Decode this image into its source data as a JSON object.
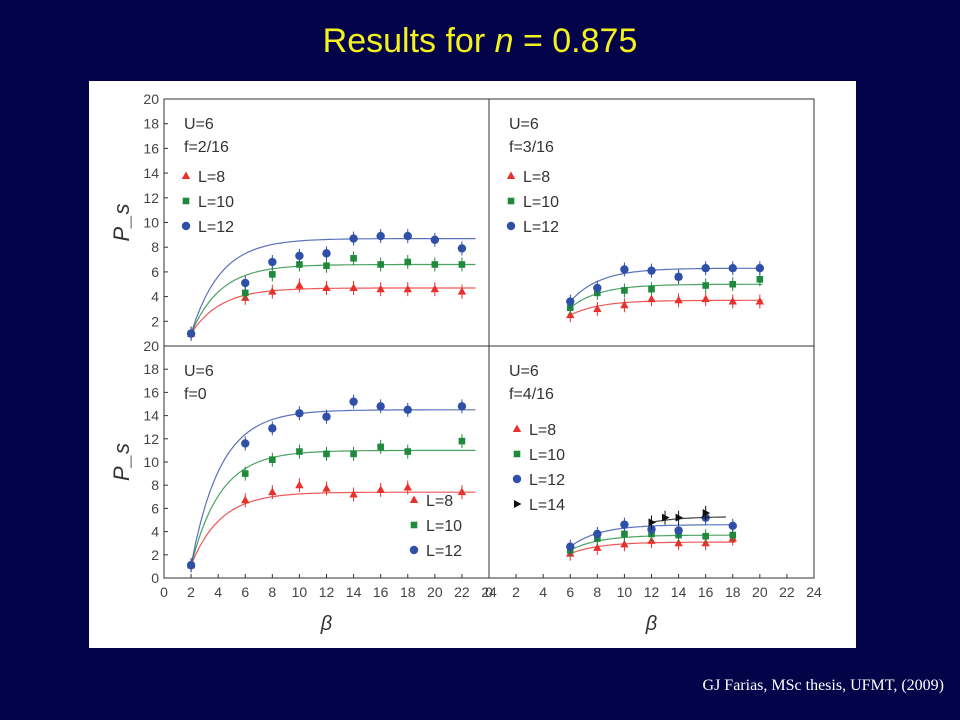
{
  "slide": {
    "title_prefix": "Results for ",
    "title_var": "n",
    "title_suffix": " = 0.875",
    "citation": "GJ Farias, MSc thesis, UFMT, (2009)"
  },
  "colors": {
    "background": "#03034a",
    "title": "#f4f21c",
    "L8": "#e8302c",
    "L10": "#1f8a3c",
    "L12": "#2f4fa8",
    "L14": "#111111"
  },
  "chart_data": [
    {
      "type": "scatter",
      "panel": "top-left",
      "ylabel": "P_s",
      "xlabel": "",
      "xlim": [
        0,
        24
      ],
      "ylim": [
        0,
        20
      ],
      "yticks": [
        "2",
        "4",
        "6",
        "8",
        "10",
        "12",
        "14",
        "16",
        "18",
        "20"
      ],
      "annotation": [
        "U=6",
        "f=2/16"
      ],
      "legend_placement": "top-left",
      "series": [
        {
          "name": "L=8",
          "marker": "triangle",
          "x": [
            2,
            6,
            8,
            10,
            12,
            14,
            16,
            18,
            20,
            22
          ],
          "y": [
            1.0,
            3.9,
            4.4,
            4.9,
            4.7,
            4.7,
            4.6,
            4.6,
            4.6,
            4.4
          ],
          "fit_plateau": 4.7
        },
        {
          "name": "L=10",
          "marker": "square",
          "x": [
            2,
            6,
            8,
            10,
            12,
            14,
            16,
            18,
            20,
            22
          ],
          "y": [
            1.0,
            4.3,
            5.8,
            6.6,
            6.5,
            7.1,
            6.6,
            6.8,
            6.6,
            6.6
          ],
          "fit_plateau": 6.6
        },
        {
          "name": "L=12",
          "marker": "circle",
          "x": [
            2,
            6,
            8,
            10,
            12,
            14,
            16,
            18,
            20,
            22
          ],
          "y": [
            1.0,
            5.1,
            6.8,
            7.3,
            7.5,
            8.7,
            8.9,
            8.9,
            8.6,
            7.9
          ],
          "fit_plateau": 8.7
        }
      ]
    },
    {
      "type": "scatter",
      "panel": "top-right",
      "ylabel": "",
      "xlabel": "",
      "xlim": [
        0,
        24
      ],
      "ylim": [
        0,
        20
      ],
      "annotation": [
        "U=6",
        "f=3/16"
      ],
      "legend_placement": "top-left",
      "series": [
        {
          "name": "L=8",
          "marker": "triangle",
          "x": [
            6,
            8,
            10,
            12,
            14,
            16,
            18,
            20
          ],
          "y": [
            2.5,
            3.0,
            3.3,
            3.8,
            3.7,
            3.8,
            3.6,
            3.6
          ],
          "fit_plateau": 3.7
        },
        {
          "name": "L=10",
          "marker": "square",
          "x": [
            6,
            8,
            10,
            12,
            14,
            16,
            18,
            20
          ],
          "y": [
            3.1,
            4.3,
            4.5,
            4.6,
            5.6,
            4.9,
            5.0,
            5.4
          ],
          "fit_plateau": 5.0
        },
        {
          "name": "L=12",
          "marker": "circle",
          "x": [
            6,
            8,
            10,
            12,
            14,
            16,
            18,
            20
          ],
          "y": [
            3.6,
            4.7,
            6.2,
            6.1,
            5.6,
            6.3,
            6.3,
            6.3
          ],
          "fit_plateau": 6.3
        }
      ]
    },
    {
      "type": "scatter",
      "panel": "bottom-left",
      "ylabel": "P_s",
      "xlabel": "β",
      "xlim": [
        0,
        24
      ],
      "ylim": [
        0,
        20
      ],
      "xticks": [
        "0",
        "2",
        "4",
        "6",
        "8",
        "10",
        "12",
        "14",
        "16",
        "18",
        "20",
        "22",
        "24"
      ],
      "yticks": [
        "0",
        "2",
        "4",
        "6",
        "8",
        "10",
        "12",
        "14",
        "16",
        "18",
        "20"
      ],
      "annotation": [
        "U=6",
        "f=0"
      ],
      "legend_placement": "bottom-right",
      "series": [
        {
          "name": "L=8",
          "marker": "triangle",
          "x": [
            2,
            6,
            8,
            10,
            12,
            14,
            16,
            18,
            22
          ],
          "y": [
            1.1,
            6.7,
            7.4,
            8.0,
            7.7,
            7.2,
            7.6,
            7.8,
            7.4
          ],
          "fit_plateau": 7.4
        },
        {
          "name": "L=10",
          "marker": "square",
          "x": [
            2,
            6,
            8,
            10,
            12,
            14,
            16,
            18,
            22
          ],
          "y": [
            1.1,
            9.0,
            10.2,
            10.9,
            10.7,
            10.7,
            11.3,
            10.9,
            11.8
          ],
          "fit_plateau": 11.0
        },
        {
          "name": "L=12",
          "marker": "circle",
          "x": [
            2,
            6,
            8,
            10,
            12,
            14,
            16,
            18,
            22
          ],
          "y": [
            1.1,
            11.6,
            12.9,
            14.2,
            13.9,
            15.2,
            14.8,
            14.5,
            14.8
          ],
          "fit_plateau": 14.5
        }
      ]
    },
    {
      "type": "scatter",
      "panel": "bottom-right",
      "ylabel": "",
      "xlabel": "β",
      "xlim": [
        0,
        24
      ],
      "ylim": [
        0,
        20
      ],
      "xticks": [
        "0",
        "2",
        "4",
        "6",
        "8",
        "10",
        "12",
        "14",
        "16",
        "18",
        "20",
        "22",
        "24"
      ],
      "annotation": [
        "U=6",
        "f=4/16"
      ],
      "legend_placement": "middle-left",
      "series": [
        {
          "name": "L=8",
          "marker": "triangle",
          "x": [
            6,
            8,
            10,
            12,
            14,
            16,
            18
          ],
          "y": [
            2.1,
            2.6,
            2.9,
            3.2,
            3.0,
            3.0,
            3.4
          ],
          "fit_plateau": 3.1
        },
        {
          "name": "L=10",
          "marker": "square",
          "x": [
            6,
            8,
            10,
            12,
            14,
            16,
            18
          ],
          "y": [
            2.4,
            3.4,
            3.8,
            3.8,
            3.7,
            3.6,
            3.7
          ],
          "fit_plateau": 3.7
        },
        {
          "name": "L=12",
          "marker": "circle",
          "x": [
            6,
            8,
            10,
            12,
            14,
            16,
            18
          ],
          "y": [
            2.7,
            3.8,
            4.6,
            4.2,
            4.1,
            5.2,
            4.5
          ],
          "fit_plateau": 4.6
        },
        {
          "name": "L=14",
          "marker": "triangle-right",
          "x": [
            12,
            13,
            14,
            16
          ],
          "y": [
            4.8,
            5.2,
            5.2,
            5.6
          ],
          "fit_plateau": 5.3
        }
      ]
    }
  ]
}
